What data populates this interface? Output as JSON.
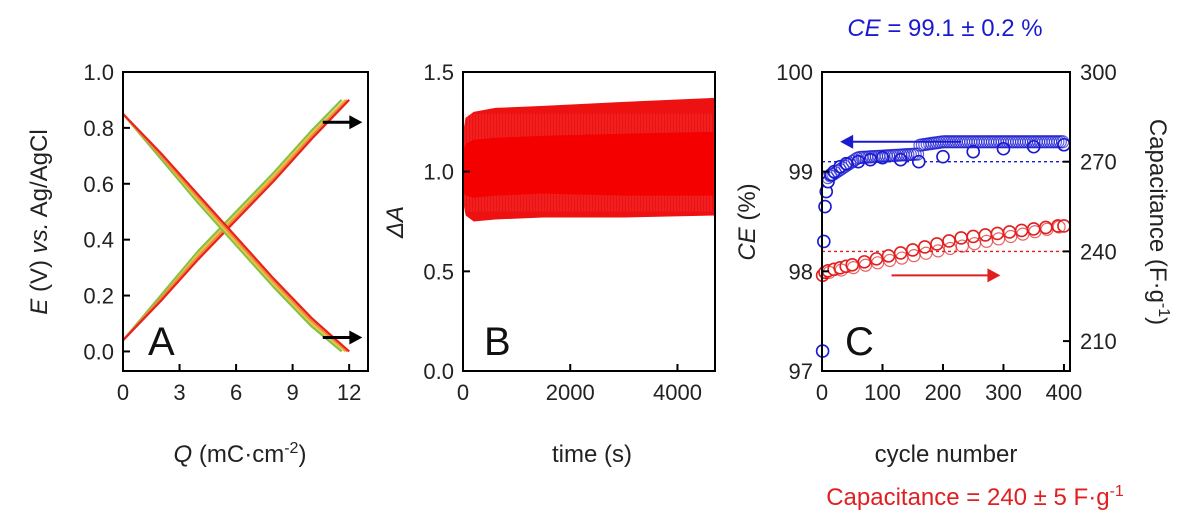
{
  "chart_data": [
    {
      "panel": "A",
      "type": "line",
      "xlabel_var": "Q",
      "xlabel_unit": "(mC·cm",
      "xlabel_sup": "-2",
      "xlabel_close": ")",
      "ylabel_var": "E",
      "ylabel_mid": " (V) ",
      "ylabel_vs": "vs.",
      "ylabel_end": " Ag/AgCl",
      "xlim": [
        0,
        13
      ],
      "ylim": [
        -0.07,
        1.0
      ],
      "xticks": [
        "0",
        "3",
        "6",
        "9",
        "12"
      ],
      "yticks": [
        "0.0",
        "0.2",
        "0.4",
        "0.6",
        "0.8",
        "1.0"
      ],
      "series": [
        {
          "curve": "charge",
          "color": "#7fc241",
          "x": [
            0,
            2,
            4,
            6,
            8,
            10,
            11.6
          ],
          "y": [
            0.04,
            0.2,
            0.36,
            0.5,
            0.64,
            0.79,
            0.9
          ]
        },
        {
          "curve": "charge",
          "color": "#e8c24a",
          "x": [
            0,
            2,
            4,
            6,
            8,
            10,
            11.8
          ],
          "y": [
            0.04,
            0.19,
            0.35,
            0.49,
            0.63,
            0.78,
            0.9
          ]
        },
        {
          "curve": "charge",
          "color": "#f08a3c",
          "x": [
            0,
            2,
            4,
            6,
            8,
            10,
            11.9
          ],
          "y": [
            0.04,
            0.19,
            0.34,
            0.48,
            0.62,
            0.77,
            0.9
          ]
        },
        {
          "curve": "charge",
          "color": "#e8231e",
          "x": [
            0,
            2,
            4,
            6,
            8,
            10,
            12.0
          ],
          "y": [
            0.04,
            0.18,
            0.33,
            0.47,
            0.61,
            0.76,
            0.9
          ]
        },
        {
          "curve": "discharge",
          "color": "#7fc241",
          "x": [
            0,
            2,
            4,
            6,
            8,
            10,
            11.6
          ],
          "y": [
            0.85,
            0.69,
            0.53,
            0.38,
            0.23,
            0.09,
            0.0
          ]
        },
        {
          "curve": "discharge",
          "color": "#e8c24a",
          "x": [
            0,
            2,
            4,
            6,
            8,
            10,
            11.8
          ],
          "y": [
            0.85,
            0.7,
            0.54,
            0.39,
            0.24,
            0.1,
            0.0
          ]
        },
        {
          "curve": "discharge",
          "color": "#f08a3c",
          "x": [
            0,
            2,
            4,
            6,
            8,
            10,
            11.9
          ],
          "y": [
            0.85,
            0.7,
            0.55,
            0.4,
            0.25,
            0.11,
            0.0
          ]
        },
        {
          "curve": "discharge",
          "color": "#e8231e",
          "x": [
            0,
            2,
            4,
            6,
            8,
            10,
            12.0
          ],
          "y": [
            0.85,
            0.71,
            0.56,
            0.41,
            0.26,
            0.12,
            0.0
          ]
        }
      ],
      "arrows": [
        {
          "x1": 10.6,
          "y1": 0.82,
          "x2": 12.7,
          "y2": 0.82
        },
        {
          "x1": 10.6,
          "y1": 0.05,
          "x2": 12.7,
          "y2": 0.05
        }
      ]
    },
    {
      "panel": "B",
      "type": "area",
      "xlabel": "time (s)",
      "ylabel": "ΔA",
      "xlim": [
        0,
        4700
      ],
      "ylim": [
        0.0,
        1.5
      ],
      "xticks": [
        0,
        2000,
        4000
      ],
      "yticks": [
        "0.0",
        "0.5",
        "1.0",
        "1.5"
      ],
      "color": "#ee1111",
      "band": {
        "x": [
          0,
          50,
          200,
          600,
          1500,
          3000,
          4700
        ],
        "upper": [
          1.2,
          1.27,
          1.3,
          1.32,
          1.33,
          1.35,
          1.37
        ],
        "lower": [
          0.85,
          0.78,
          0.75,
          0.76,
          0.77,
          0.77,
          0.78
        ],
        "inner_upper": [
          1.1,
          1.14,
          1.16,
          1.17,
          1.18,
          1.19,
          1.2
        ],
        "inner_lower": [
          0.9,
          0.88,
          0.87,
          0.88,
          0.89,
          0.88,
          0.88
        ]
      }
    },
    {
      "panel": "C",
      "type": "scatter",
      "xlabel": "cycle number",
      "ylabel_var": "CE",
      "ylabel_unit": " (%)",
      "y2label_main": "Capacitance (F·g",
      "y2label_sup": "-1",
      "y2label_close": ")",
      "xlim": [
        0,
        410
      ],
      "ylim": [
        97,
        100
      ],
      "y2lim": [
        200,
        300
      ],
      "xticks": [
        0,
        100,
        200,
        300,
        400
      ],
      "yticks": [
        97,
        98,
        99,
        100
      ],
      "y2ticks": [
        210,
        240,
        270,
        300
      ],
      "ce_mean": 99.1,
      "cap_mean": 240,
      "ce_annotation_var": "CE",
      "ce_annotation_value": " = 99.1 ± 0.2 %",
      "cap_annotation_main": "Capacitance = 240 ± 5 F·g",
      "cap_annotation_sup": "-1",
      "ce_series": {
        "color": "#1a1ad0",
        "x": [
          1,
          3,
          5,
          7,
          10,
          15,
          20,
          30,
          40,
          60,
          80,
          100,
          130,
          160,
          200,
          250,
          300,
          350,
          400
        ],
        "y": [
          97.2,
          98.3,
          98.65,
          98.8,
          98.9,
          98.97,
          99.0,
          99.05,
          99.08,
          99.1,
          99.12,
          99.14,
          99.12,
          99.1,
          99.15,
          99.2,
          99.23,
          99.25,
          99.27
        ]
      },
      "cap_series": {
        "color": "#e02020",
        "x": [
          1,
          5,
          10,
          20,
          30,
          40,
          50,
          70,
          90,
          110,
          130,
          150,
          170,
          190,
          210,
          230,
          250,
          270,
          290,
          310,
          330,
          350,
          370,
          390,
          400
        ],
        "y": [
          232,
          233,
          233.5,
          234,
          234.5,
          235,
          235.5,
          236.5,
          237.5,
          238.5,
          239.5,
          240.5,
          241.5,
          242.5,
          243.5,
          244.5,
          245,
          245.5,
          246,
          246.5,
          247,
          247.5,
          248,
          248.5,
          248.5
        ]
      },
      "arrows": [
        {
          "color": "#1a1ad0",
          "axis": "left",
          "x1": 230,
          "y1": 99.3,
          "x2": 30,
          "y2": 99.3
        },
        {
          "color": "#e02020",
          "axis": "right",
          "x1": 115,
          "y1": 232,
          "x2": 295,
          "y2": 232
        }
      ]
    }
  ]
}
